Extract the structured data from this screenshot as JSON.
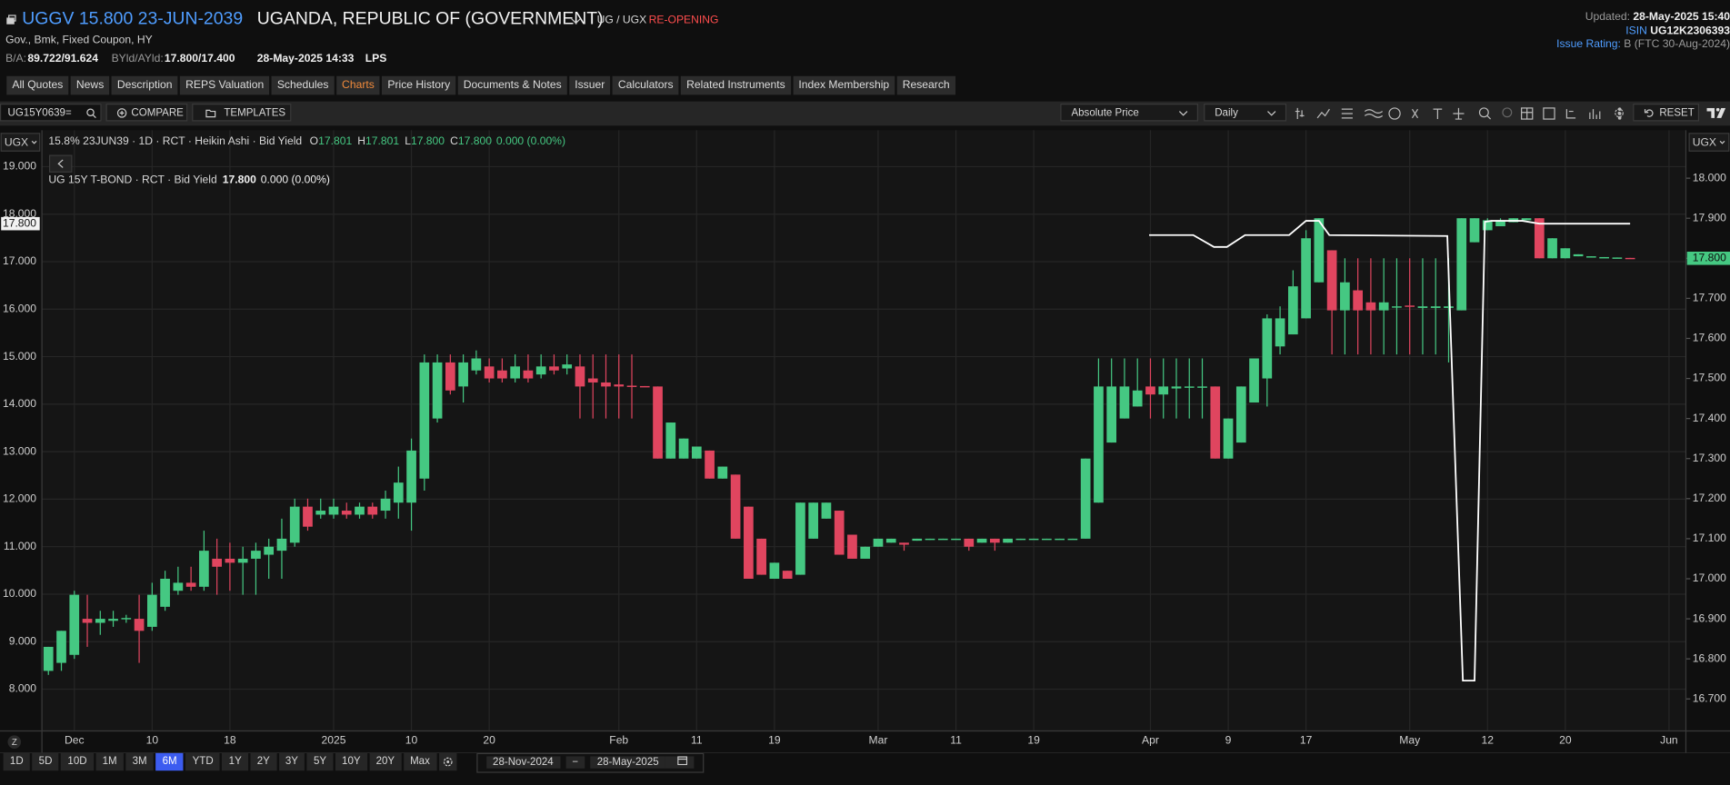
{
  "header": {
    "symbol": "UGGV 15.800 23-JUN-2039",
    "issuer": "UGANDA, REPUBLIC OF (GOVERNMENT)",
    "exchange": "UG / UGX",
    "status": "RE-OPENING",
    "description": "Gov., Bmk, Fixed Coupon, HY",
    "ba_label": "B/A:",
    "ba": "89.722/91.624",
    "byld_label": "BYld/AYld:",
    "byld": "17.800/17.400",
    "datetime": "28-May-2025 14:33",
    "source": "LPS",
    "updated_label": "Updated:",
    "updated": "28-May-2025 15:40",
    "isin_label": "ISIN",
    "isin": "UG12K2306393",
    "rating_label": "Issue Rating:",
    "rating": "B (FTC 30-Aug-2024)"
  },
  "tabs": [
    "All Quotes",
    "News",
    "Description",
    "REPS Valuation",
    "Schedules",
    "Charts",
    "Price History",
    "Documents & Notes",
    "Issuer",
    "Calculators",
    "Related Instruments",
    "Index Membership",
    "Research"
  ],
  "active_tab": 5,
  "toolbar": {
    "ric": "UG15Y0639=",
    "compare": "COMPARE",
    "templates": "TEMPLATES",
    "price_type": "Absolute Price",
    "interval": "Daily",
    "reset": "RESET"
  },
  "chart": {
    "type": "candlestick",
    "currency_left": "UGX",
    "currency_right": "UGX",
    "zoom": "Z",
    "legend_main": "15.8% 23JUN39 · 1D · RCT · Heikin Ashi · Bid Yield",
    "ohlc": [
      {
        "key": "O",
        "value": "17.801"
      },
      {
        "key": "H",
        "value": "17.801"
      },
      {
        "key": "L",
        "value": "17.800"
      },
      {
        "key": "C",
        "value": "17.800"
      }
    ],
    "change": "0.000 (0.00%)",
    "legend_line": "UG 15Y T-BOND · RCT · Bid Yield",
    "line_last": "17.800",
    "line_change": "0.000 (0.00%)",
    "up_color": "#45c882",
    "down_color": "#e0455f",
    "line_color": "#ffffff",
    "grid": true,
    "xlim": [
      -0.5,
      126.3
    ],
    "ylim": [
      7.12,
      19.77
    ],
    "y2lim": [
      16.62,
      18.12
    ],
    "yticks": [
      {
        "value": 19,
        "label": "19.000"
      },
      {
        "value": 18,
        "label": "18.000"
      },
      {
        "value": 17,
        "label": "17.000"
      },
      {
        "value": 16,
        "label": "16.000"
      },
      {
        "value": 15,
        "label": "15.000"
      },
      {
        "value": 14,
        "label": "14.000"
      },
      {
        "value": 13,
        "label": "13.000"
      },
      {
        "value": 12,
        "label": "12.000"
      },
      {
        "value": 11,
        "label": "11.000"
      },
      {
        "value": 10,
        "label": "10.000"
      },
      {
        "value": 9,
        "label": "9.000"
      },
      {
        "value": 8,
        "label": "8.000"
      }
    ],
    "y2ticks": [
      {
        "value": 18,
        "label": "18.000"
      },
      {
        "value": 17.9,
        "label": "17.900"
      },
      {
        "value": 17.8,
        "label": "17.800"
      },
      {
        "value": 17.7,
        "label": "17.700"
      },
      {
        "value": 17.6,
        "label": "17.600"
      },
      {
        "value": 17.5,
        "label": "17.500"
      },
      {
        "value": 17.4,
        "label": "17.400"
      },
      {
        "value": 17.3,
        "label": "17.300"
      },
      {
        "value": 17.2,
        "label": "17.200"
      },
      {
        "value": 17.1,
        "label": "17.100"
      },
      {
        "value": 17,
        "label": "17.000"
      },
      {
        "value": 16.9,
        "label": "16.900"
      },
      {
        "value": 16.8,
        "label": "16.800"
      },
      {
        "value": 16.7,
        "label": "16.700"
      }
    ],
    "xticks": [
      {
        "value": 2,
        "label": "Dec"
      },
      {
        "value": 8,
        "label": "10"
      },
      {
        "value": 14,
        "label": "18"
      },
      {
        "value": 22,
        "label": "2025"
      },
      {
        "value": 28,
        "label": "10"
      },
      {
        "value": 34,
        "label": "20"
      },
      {
        "value": 44,
        "label": "Feb"
      },
      {
        "value": 50,
        "label": "11"
      },
      {
        "value": 56,
        "label": "19"
      },
      {
        "value": 64,
        "label": "Mar"
      },
      {
        "value": 70,
        "label": "11"
      },
      {
        "value": 76,
        "label": "19"
      },
      {
        "value": 85,
        "label": "Apr"
      },
      {
        "value": 91,
        "label": "9"
      },
      {
        "value": 97,
        "label": "17"
      },
      {
        "value": 105,
        "label": "May"
      },
      {
        "value": 111,
        "label": "12"
      },
      {
        "value": 117,
        "label": "20"
      },
      {
        "value": 125,
        "label": "Jun"
      }
    ],
    "last_line_label": {
      "value": 17.8,
      "label": "17.800"
    },
    "last_price_label": {
      "value": 17.8,
      "label": "17.800"
    },
    "candles": [
      [
        16.77,
        16.83,
        16.76,
        16.83
      ],
      [
        16.79,
        16.87,
        16.77,
        16.87
      ],
      [
        16.81,
        16.97,
        16.8,
        16.96
      ],
      [
        16.9,
        16.96,
        16.83,
        16.89
      ],
      [
        16.89,
        16.92,
        16.86,
        16.9
      ],
      [
        16.895,
        16.92,
        16.88,
        16.9
      ],
      [
        16.9,
        16.91,
        16.89,
        16.902
      ],
      [
        16.9,
        16.96,
        16.79,
        16.87
      ],
      [
        16.88,
        16.99,
        16.87,
        16.96
      ],
      [
        16.93,
        17.02,
        16.92,
        17.0
      ],
      [
        16.97,
        17.03,
        16.96,
        16.99
      ],
      [
        16.99,
        17.03,
        16.97,
        16.98
      ],
      [
        16.98,
        17.12,
        16.97,
        17.07
      ],
      [
        17.05,
        17.1,
        16.96,
        17.03
      ],
      [
        17.05,
        17.09,
        16.97,
        17.04
      ],
      [
        17.04,
        17.08,
        16.96,
        17.05
      ],
      [
        17.05,
        17.09,
        16.96,
        17.07
      ],
      [
        17.06,
        17.1,
        17.0,
        17.08
      ],
      [
        17.07,
        17.15,
        17.0,
        17.1
      ],
      [
        17.09,
        17.2,
        17.08,
        17.18
      ],
      [
        17.18,
        17.2,
        17.12,
        17.13
      ],
      [
        17.16,
        17.2,
        17.15,
        17.17
      ],
      [
        17.16,
        17.2,
        17.15,
        17.18
      ],
      [
        17.17,
        17.19,
        17.15,
        17.16
      ],
      [
        17.16,
        17.19,
        17.15,
        17.18
      ],
      [
        17.18,
        17.19,
        17.15,
        17.16
      ],
      [
        17.17,
        17.22,
        17.15,
        17.2
      ],
      [
        17.19,
        17.28,
        17.15,
        17.24
      ],
      [
        17.19,
        17.35,
        17.12,
        17.32
      ],
      [
        17.25,
        17.56,
        17.22,
        17.54
      ],
      [
        17.4,
        17.56,
        17.39,
        17.54
      ],
      [
        17.54,
        17.56,
        17.46,
        17.47
      ],
      [
        17.48,
        17.56,
        17.44,
        17.54
      ],
      [
        17.52,
        17.57,
        17.51,
        17.55
      ],
      [
        17.53,
        17.55,
        17.49,
        17.5
      ],
      [
        17.52,
        17.55,
        17.49,
        17.5
      ],
      [
        17.5,
        17.56,
        17.49,
        17.53
      ],
      [
        17.52,
        17.56,
        17.49,
        17.5
      ],
      [
        17.51,
        17.56,
        17.5,
        17.53
      ],
      [
        17.53,
        17.56,
        17.51,
        17.52
      ],
      [
        17.525,
        17.56,
        17.51,
        17.535
      ],
      [
        17.53,
        17.56,
        17.4,
        17.48
      ],
      [
        17.5,
        17.56,
        17.4,
        17.49
      ],
      [
        17.49,
        17.56,
        17.4,
        17.48
      ],
      [
        17.485,
        17.56,
        17.4,
        17.48
      ],
      [
        17.482,
        17.56,
        17.4,
        17.48
      ],
      [
        17.481,
        17.481,
        17.48,
        17.48
      ],
      [
        17.48,
        17.48,
        17.3,
        17.3
      ],
      [
        17.3,
        17.39,
        17.3,
        17.39
      ],
      [
        17.3,
        17.35,
        17.3,
        17.35
      ],
      [
        17.3,
        17.33,
        17.3,
        17.33
      ],
      [
        17.32,
        17.32,
        17.25,
        17.25
      ],
      [
        17.25,
        17.28,
        17.25,
        17.28
      ],
      [
        17.26,
        17.26,
        17.1,
        17.1
      ],
      [
        17.18,
        17.18,
        17.0,
        17.0
      ],
      [
        17.1,
        17.1,
        17.01,
        17.01
      ],
      [
        17.0,
        17.04,
        17.0,
        17.04
      ],
      [
        17.02,
        17.02,
        17.0,
        17.0
      ],
      [
        17.01,
        17.19,
        17.01,
        17.19
      ],
      [
        17.1,
        17.19,
        17.1,
        17.19
      ],
      [
        17.15,
        17.19,
        17.15,
        17.19
      ],
      [
        17.17,
        17.17,
        17.06,
        17.06
      ],
      [
        17.11,
        17.11,
        17.05,
        17.05
      ],
      [
        17.05,
        17.08,
        17.05,
        17.08
      ],
      [
        17.08,
        17.1,
        17.08,
        17.1
      ],
      [
        17.09,
        17.1,
        17.09,
        17.1
      ],
      [
        17.09,
        17.09,
        17.07,
        17.085
      ],
      [
        17.095,
        17.1,
        17.095,
        17.1
      ],
      [
        17.097,
        17.1,
        17.097,
        17.1
      ],
      [
        17.098,
        17.1,
        17.098,
        17.1
      ],
      [
        17.098,
        17.1,
        17.098,
        17.1
      ],
      [
        17.1,
        17.1,
        17.07,
        17.08
      ],
      [
        17.09,
        17.1,
        17.09,
        17.1
      ],
      [
        17.1,
        17.1,
        17.07,
        17.09
      ],
      [
        17.09,
        17.1,
        17.09,
        17.1
      ],
      [
        17.097,
        17.1,
        17.097,
        17.1
      ],
      [
        17.098,
        17.1,
        17.098,
        17.1
      ],
      [
        17.098,
        17.1,
        17.098,
        17.1
      ],
      [
        17.098,
        17.1,
        17.098,
        17.1
      ],
      [
        17.098,
        17.1,
        17.098,
        17.1
      ],
      [
        17.1,
        17.3,
        17.1,
        17.3
      ],
      [
        17.19,
        17.55,
        17.19,
        17.48
      ],
      [
        17.34,
        17.55,
        17.34,
        17.48
      ],
      [
        17.4,
        17.55,
        17.4,
        17.48
      ],
      [
        17.43,
        17.55,
        17.43,
        17.47
      ],
      [
        17.48,
        17.55,
        17.4,
        17.46
      ],
      [
        17.46,
        17.55,
        17.4,
        17.48
      ],
      [
        17.475,
        17.55,
        17.4,
        17.48
      ],
      [
        17.478,
        17.55,
        17.4,
        17.48
      ],
      [
        17.479,
        17.55,
        17.4,
        17.48
      ],
      [
        17.48,
        17.48,
        17.3,
        17.3
      ],
      [
        17.3,
        17.4,
        17.3,
        17.4
      ],
      [
        17.34,
        17.48,
        17.34,
        17.48
      ],
      [
        17.44,
        17.55,
        17.44,
        17.55
      ],
      [
        17.5,
        17.66,
        17.43,
        17.65
      ],
      [
        17.58,
        17.68,
        17.56,
        17.65
      ],
      [
        17.61,
        17.77,
        17.61,
        17.73
      ],
      [
        17.65,
        17.87,
        17.65,
        17.85
      ],
      [
        17.74,
        17.9,
        17.74,
        17.9
      ],
      [
        17.82,
        17.82,
        17.56,
        17.67
      ],
      [
        17.67,
        17.8,
        17.56,
        17.74
      ],
      [
        17.72,
        17.8,
        17.56,
        17.67
      ],
      [
        17.69,
        17.8,
        17.56,
        17.67
      ],
      [
        17.67,
        17.8,
        17.56,
        17.69
      ],
      [
        17.678,
        17.8,
        17.56,
        17.68
      ],
      [
        17.682,
        17.8,
        17.56,
        17.68
      ],
      [
        17.676,
        17.8,
        17.56,
        17.68
      ],
      [
        17.676,
        17.8,
        17.56,
        17.68
      ],
      [
        17.676,
        17.8,
        17.54,
        17.68
      ],
      [
        17.67,
        17.9,
        17.67,
        17.9
      ],
      [
        17.84,
        17.9,
        17.84,
        17.9
      ],
      [
        17.87,
        17.9,
        17.87,
        17.895
      ],
      [
        17.88,
        17.9,
        17.88,
        17.895
      ],
      [
        17.89,
        17.9,
        17.89,
        17.9
      ],
      [
        17.895,
        17.9,
        17.895,
        17.9
      ],
      [
        17.9,
        17.9,
        17.8,
        17.8
      ],
      [
        17.8,
        17.85,
        17.8,
        17.85
      ],
      [
        17.8,
        17.825,
        17.8,
        17.825
      ],
      [
        17.805,
        17.81,
        17.805,
        17.81
      ],
      [
        17.803,
        17.805,
        17.803,
        17.805
      ],
      [
        17.801,
        17.803,
        17.801,
        17.803
      ],
      [
        17.801,
        17.802,
        17.8,
        17.802
      ],
      [
        17.801,
        17.801,
        17.8,
        17.8
      ]
    ],
    "line": {
      "x": [
        84.9,
        88.3,
        89.9,
        90.9,
        92.3,
        95.7,
        97.0,
        98.0,
        98.8,
        107.9,
        109.1,
        110.0,
        110.8,
        111.3,
        113.7,
        115.0,
        122.0
      ],
      "values": [
        17.56,
        17.56,
        17.31,
        17.31,
        17.56,
        17.56,
        17.86,
        17.86,
        17.56,
        17.54,
        8.18,
        8.18,
        17.84,
        17.86,
        17.86,
        17.8,
        17.8
      ]
    }
  },
  "ranges": [
    "1D",
    "5D",
    "10D",
    "1M",
    "3M",
    "6M",
    "YTD",
    "1Y",
    "2Y",
    "3Y",
    "5Y",
    "10Y",
    "20Y",
    "Max"
  ],
  "active_range": 5,
  "date_from": "28-Nov-2024",
  "date_sep": "−",
  "date_to": "28-May-2025"
}
